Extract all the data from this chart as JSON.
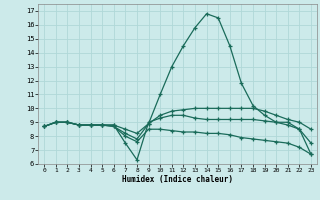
{
  "xlabel": "Humidex (Indice chaleur)",
  "bg_color": "#cceaea",
  "grid_color": "#b0d8d8",
  "line_color": "#1a6b5a",
  "xlim": [
    -0.5,
    23.5
  ],
  "ylim": [
    6,
    17.5
  ],
  "xticks": [
    0,
    1,
    2,
    3,
    4,
    5,
    6,
    7,
    8,
    9,
    10,
    11,
    12,
    13,
    14,
    15,
    16,
    17,
    18,
    19,
    20,
    21,
    22,
    23
  ],
  "yticks": [
    6,
    7,
    8,
    9,
    10,
    11,
    12,
    13,
    14,
    15,
    16,
    17
  ],
  "line1_x": [
    0,
    1,
    2,
    3,
    4,
    5,
    6,
    7,
    8,
    9,
    10,
    11,
    12,
    13,
    14,
    15,
    16,
    17,
    18,
    19,
    20,
    21,
    22,
    23
  ],
  "line1_y": [
    8.7,
    9.0,
    9.0,
    8.8,
    8.8,
    8.8,
    8.8,
    7.5,
    6.3,
    9.0,
    9.3,
    9.5,
    9.5,
    9.3,
    9.2,
    9.2,
    9.2,
    9.2,
    9.2,
    9.1,
    9.0,
    8.8,
    8.5,
    6.7
  ],
  "line2_x": [
    0,
    1,
    2,
    3,
    4,
    5,
    6,
    7,
    8,
    9,
    10,
    11,
    12,
    13,
    14,
    15,
    16,
    17,
    18,
    19,
    20,
    21,
    22,
    23
  ],
  "line2_y": [
    8.7,
    9.0,
    9.0,
    8.8,
    8.8,
    8.8,
    8.7,
    8.2,
    7.8,
    8.9,
    9.5,
    9.8,
    9.9,
    10.0,
    10.0,
    10.0,
    10.0,
    10.0,
    10.0,
    9.8,
    9.5,
    9.2,
    9.0,
    8.5
  ],
  "line3_x": [
    0,
    1,
    2,
    3,
    4,
    5,
    6,
    7,
    8,
    9,
    10,
    11,
    12,
    13,
    14,
    15,
    16,
    17,
    18,
    19,
    20,
    21,
    22,
    23
  ],
  "line3_y": [
    8.7,
    9.0,
    9.0,
    8.8,
    8.8,
    8.8,
    8.8,
    8.5,
    8.2,
    8.9,
    11.0,
    13.0,
    14.5,
    15.8,
    16.8,
    16.5,
    14.5,
    11.8,
    10.2,
    9.5,
    9.0,
    9.0,
    8.5,
    7.5
  ],
  "line4_x": [
    0,
    1,
    2,
    3,
    4,
    5,
    6,
    7,
    8,
    9,
    10,
    11,
    12,
    13,
    14,
    15,
    16,
    17,
    18,
    19,
    20,
    21,
    22,
    23
  ],
  "line4_y": [
    8.7,
    9.0,
    9.0,
    8.8,
    8.8,
    8.8,
    8.7,
    8.0,
    7.6,
    8.5,
    8.5,
    8.4,
    8.3,
    8.3,
    8.2,
    8.2,
    8.1,
    7.9,
    7.8,
    7.7,
    7.6,
    7.5,
    7.2,
    6.7
  ]
}
